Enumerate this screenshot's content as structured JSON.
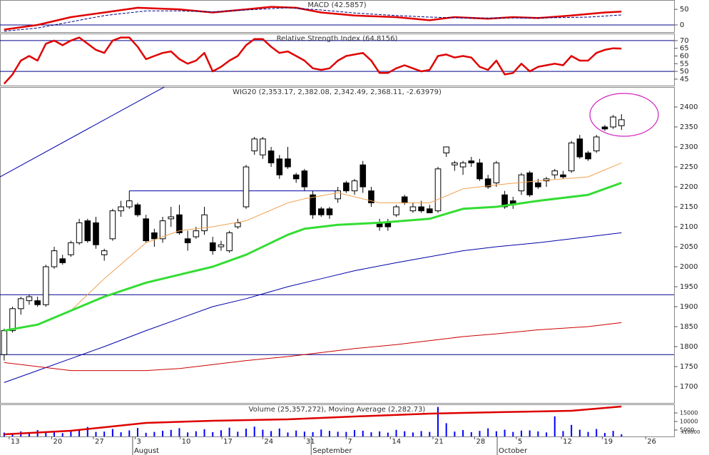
{
  "chart_data": [
    {
      "type": "line",
      "title": "MACD (42.5857)",
      "xlim": [
        -0.5,
        80.3
      ],
      "ylim": [
        -23,
        80
      ],
      "yticks": [
        0,
        50
      ],
      "hlines": [
        0
      ],
      "series": [
        {
          "color": "#e00000",
          "x": [
            0,
            4,
            8,
            12,
            16,
            21,
            25,
            29,
            32,
            35,
            38,
            42,
            47,
            51,
            54,
            58,
            61,
            64,
            68,
            72,
            74
          ],
          "values": [
            -15,
            0,
            25,
            40,
            55,
            50,
            40,
            50,
            58,
            55,
            40,
            30,
            25,
            15,
            25,
            20,
            25,
            22,
            30,
            40,
            42.5857
          ]
        },
        {
          "color": "#000080",
          "dash": true,
          "x": [
            0,
            4,
            8,
            12,
            17,
            21,
            25,
            29,
            34,
            38,
            42,
            47,
            51,
            55,
            59,
            64,
            70,
            74
          ],
          "values": [
            -20,
            -10,
            10,
            30,
            45,
            45,
            42,
            48,
            55,
            48,
            38,
            30,
            25,
            22,
            22,
            22,
            25,
            32
          ]
        }
      ]
    },
    {
      "type": "line",
      "title": "Relative Strength Index (64.8156)",
      "xlim": [
        -0.5,
        80.3
      ],
      "ylim": [
        40.8,
        74.6
      ],
      "yticks": [
        45,
        50,
        55,
        60,
        65,
        70
      ],
      "hlines": [
        70,
        50
      ],
      "series": [
        {
          "color": "#e00000",
          "values": [
            42,
            48,
            57,
            60,
            57,
            68,
            70,
            67,
            70,
            72,
            68,
            64,
            62,
            70,
            72,
            72,
            66,
            58,
            60,
            62,
            63,
            58,
            55,
            57,
            62,
            50,
            53,
            57,
            60,
            67,
            71,
            71,
            66,
            62,
            63,
            60,
            57,
            52,
            51,
            52,
            57,
            60,
            61,
            62,
            57,
            49,
            49,
            52,
            54,
            52,
            50,
            51,
            60,
            61,
            59,
            60,
            59,
            53,
            51,
            57,
            48,
            49,
            55,
            50,
            53,
            54,
            55,
            54,
            60,
            57,
            57,
            62,
            64,
            65,
            64.8156
          ]
        }
      ]
    },
    {
      "type": "candlestick",
      "title": "WIG20 (2,353.17, 2,382.08, 2,342.49, 2,368.11, -2.63979)",
      "xlim": [
        -0.5,
        80.3
      ],
      "ylim": [
        1659,
        2450
      ],
      "yticks": [
        1700,
        1750,
        1800,
        1850,
        1900,
        1950,
        2000,
        2050,
        2100,
        2150,
        2200,
        2250,
        2300,
        2350,
        2400
      ],
      "up_color": "#ffffff",
      "down_color": "#000000",
      "open": [
        1780,
        1840,
        1895,
        1915,
        1915,
        1905,
        2000,
        2020,
        2030,
        2060,
        2115,
        2110,
        2030,
        2070,
        2140,
        2150,
        2155,
        2120,
        2085,
        2070,
        2120,
        2130,
        2070,
        2075,
        2090,
        2060,
        2050,
        2040,
        2100,
        2150,
        2290,
        2280,
        2290,
        2270,
        2270,
        2230,
        2240,
        2180,
        2145,
        2145,
        2170,
        2210,
        2190,
        2255,
        2190,
        2110,
        2110,
        2130,
        2175,
        2140,
        2150,
        2145,
        2140,
        2285,
        2255,
        2250,
        2265,
        2260,
        2220,
        2210,
        2180,
        2165,
        2190,
        2235,
        2210,
        2215,
        2230,
        2230,
        2240,
        2320,
        2285,
        2290,
        2350,
        2350,
        2353.17
      ],
      "high": [
        1845,
        1900,
        1925,
        1930,
        1925,
        2005,
        2050,
        2030,
        2065,
        2120,
        2120,
        2125,
        2045,
        2145,
        2165,
        2190,
        2160,
        2130,
        2095,
        2125,
        2150,
        2155,
        2090,
        2100,
        2150,
        2075,
        2065,
        2090,
        2120,
        2255,
        2325,
        2325,
        2300,
        2280,
        2300,
        2235,
        2245,
        2190,
        2150,
        2150,
        2200,
        2215,
        2220,
        2265,
        2200,
        2120,
        2120,
        2155,
        2180,
        2160,
        2165,
        2155,
        2250,
        2300,
        2265,
        2265,
        2275,
        2270,
        2230,
        2265,
        2190,
        2175,
        2235,
        2240,
        2220,
        2225,
        2245,
        2240,
        2315,
        2330,
        2290,
        2330,
        2355,
        2380,
        2382.08
      ],
      "low": [
        1765,
        1835,
        1880,
        1905,
        1900,
        1900,
        1995,
        2005,
        2025,
        2055,
        2060,
        2045,
        2015,
        2065,
        2125,
        2145,
        2125,
        2060,
        2050,
        2060,
        2100,
        2080,
        2040,
        2070,
        2080,
        2030,
        2040,
        2035,
        2095,
        2145,
        2280,
        2270,
        2250,
        2220,
        2245,
        2210,
        2190,
        2120,
        2125,
        2120,
        2160,
        2185,
        2180,
        2185,
        2150,
        2090,
        2090,
        2125,
        2155,
        2135,
        2135,
        2135,
        2135,
        2275,
        2240,
        2230,
        2250,
        2215,
        2195,
        2200,
        2145,
        2145,
        2180,
        2175,
        2195,
        2200,
        2220,
        2220,
        2235,
        2270,
        2265,
        2285,
        2340,
        2345,
        2342.49
      ],
      "close": [
        1840,
        1895,
        1920,
        1925,
        1905,
        2000,
        2040,
        2010,
        2060,
        2110,
        2065,
        2055,
        2040,
        2140,
        2150,
        2165,
        2130,
        2065,
        2070,
        2115,
        2125,
        2085,
        2060,
        2090,
        2130,
        2040,
        2055,
        2085,
        2110,
        2250,
        2320,
        2320,
        2260,
        2230,
        2250,
        2220,
        2200,
        2130,
        2130,
        2130,
        2190,
        2190,
        2215,
        2200,
        2160,
        2100,
        2100,
        2150,
        2160,
        2150,
        2140,
        2135,
        2245,
        2300,
        2260,
        2260,
        2260,
        2220,
        2200,
        2260,
        2150,
        2155,
        2230,
        2180,
        2200,
        2220,
        2240,
        2225,
        2310,
        2275,
        2270,
        2325,
        2345,
        2375,
        2368.11
      ],
      "series": [
        {
          "color": "#f0a050",
          "x": [
            0,
            4,
            8,
            12,
            17,
            21,
            25,
            29,
            34,
            36,
            40,
            45,
            51,
            55,
            59,
            64,
            70,
            74
          ],
          "values": [
            1840,
            1855,
            1890,
            1970,
            2060,
            2090,
            2100,
            2115,
            2160,
            2170,
            2185,
            2160,
            2160,
            2195,
            2205,
            2215,
            2225,
            2260
          ]
        },
        {
          "color": "#33dd33",
          "x": [
            0,
            4,
            8,
            12,
            17,
            21,
            25,
            29,
            34,
            36,
            40,
            45,
            51,
            55,
            59,
            64,
            70,
            74
          ],
          "values": [
            1840,
            1855,
            1890,
            1925,
            1960,
            1980,
            2000,
            2030,
            2080,
            2095,
            2105,
            2110,
            2120,
            2145,
            2150,
            2165,
            2180,
            2210
          ]
        },
        {
          "color": "#0000aa",
          "x": [
            0,
            4,
            8,
            12,
            17,
            21,
            25,
            29,
            34,
            38,
            42,
            47,
            51,
            55,
            59,
            64,
            70,
            74
          ],
          "values": [
            1710,
            1740,
            1770,
            1800,
            1840,
            1870,
            1900,
            1920,
            1950,
            1970,
            1990,
            2010,
            2025,
            2040,
            2050,
            2060,
            2075,
            2085
          ]
        },
        {
          "color": "#cc0000",
          "x": [
            0,
            4,
            8,
            12,
            17,
            21,
            25,
            29,
            34,
            38,
            42,
            47,
            51,
            55,
            59,
            64,
            70,
            74
          ],
          "values": [
            1760,
            1750,
            1740,
            1740,
            1740,
            1745,
            1755,
            1765,
            1775,
            1785,
            1795,
            1805,
            1815,
            1825,
            1832,
            1842,
            1850,
            1860
          ]
        }
      ],
      "hlines": [
        1930,
        1780
      ],
      "segments": [
        {
          "x": [
            15,
            39.7
          ],
          "y": [
            2190,
            2190
          ]
        },
        {
          "x": [
            -0.5,
            19.2
          ],
          "y": [
            2225,
            2450
          ]
        }
      ]
    },
    {
      "type": "bar",
      "title": "Volume (25,357,272), Moving Average (2,282.73)",
      "unit_label": "x10000",
      "xlim": [
        -0.5,
        80.3
      ],
      "ylim": [
        1250,
        20000
      ],
      "yticks": [
        15000,
        10000,
        5000
      ],
      "color": "#0000ff",
      "values": [
        3500,
        3000,
        4200,
        3800,
        5000,
        3600,
        4000,
        3200,
        4500,
        5200,
        6800,
        3900,
        4100,
        5600,
        3700,
        4800,
        6200,
        3400,
        3900,
        4600,
        5100,
        6100,
        3600,
        4300,
        5500,
        3800,
        4900,
        6400,
        4000,
        5800,
        7000,
        5200,
        4400,
        5900,
        3600,
        4700,
        4100,
        3800,
        5300,
        4500,
        4000,
        3900,
        5000,
        4600,
        3700,
        4200,
        3500,
        5100,
        4300,
        3600,
        4400,
        3900,
        18500,
        9000,
        4100,
        5000,
        3800,
        4500,
        6000,
        4300,
        5200,
        3900,
        4700,
        4800,
        4200,
        3600,
        13000,
        4400,
        8000,
        5200,
        3900,
        5600,
        3300,
        4500,
        2536
      ],
      "series": [
        {
          "color": "#dd0000",
          "x": [
            0,
            8,
            17,
            25,
            34,
            42,
            51,
            59,
            68,
            74
          ],
          "values": [
            2500,
            4580,
            9170,
            10420,
            11250,
            12920,
            14580,
            15420,
            16250,
            18750
          ]
        }
      ],
      "xticks": [
        {
          "value": 0.6,
          "label": "13"
        },
        {
          "value": 5.7,
          "label": "20"
        },
        {
          "value": 10.7,
          "label": "27"
        },
        {
          "value": 15.7,
          "label": "3"
        },
        {
          "value": 21.1,
          "label": "10"
        },
        {
          "value": 26.1,
          "label": "17"
        },
        {
          "value": 31.0,
          "label": "24"
        },
        {
          "value": 36.0,
          "label": "31"
        },
        {
          "value": 41.0,
          "label": "7"
        },
        {
          "value": 46.3,
          "label": "14"
        },
        {
          "value": 51.4,
          "label": "21"
        },
        {
          "value": 56.4,
          "label": "28"
        },
        {
          "value": 61.4,
          "label": "5"
        },
        {
          "value": 66.8,
          "label": "12"
        },
        {
          "value": 71.7,
          "label": "19"
        },
        {
          "value": 76.9,
          "label": "26"
        }
      ],
      "month_ticks": [
        {
          "value": 15.4,
          "label": "August"
        },
        {
          "value": 36.8,
          "label": "September"
        },
        {
          "value": 59.1,
          "label": "October"
        }
      ]
    }
  ]
}
